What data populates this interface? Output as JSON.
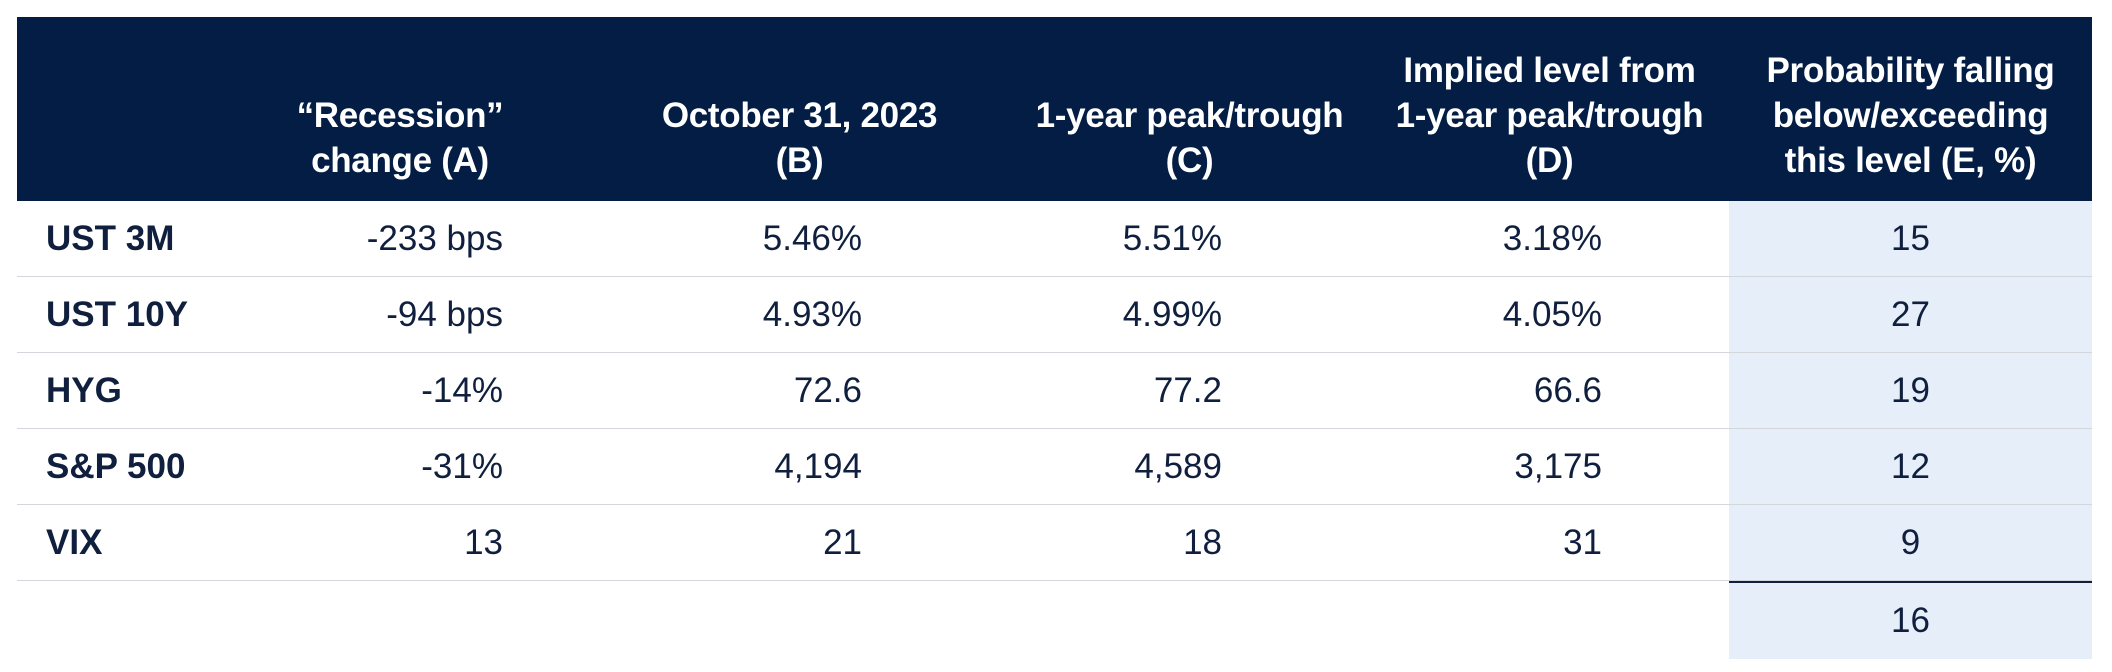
{
  "table": {
    "headers": [
      "",
      "“Recession”\nchange (A)",
      "October 31, 2023\n(B)",
      "1-year peak/trough\n(C)",
      "Implied level from\n1-year peak/trough\n(D)",
      "Probability falling\nbelow/exceeding\nthis level (E, %)"
    ],
    "rows": [
      {
        "label": "UST 3M",
        "a": "-233 bps",
        "b": "5.46%",
        "c": "5.51%",
        "d": "3.18%",
        "e": "15"
      },
      {
        "label": "UST 10Y",
        "a": "-94 bps",
        "b": "4.93%",
        "c": "4.99%",
        "d": "4.05%",
        "e": "27"
      },
      {
        "label": "HYG",
        "a": "-14%",
        "b": "72.6",
        "c": "77.2",
        "d": "66.6",
        "e": "19"
      },
      {
        "label": "S&P 500",
        "a": "-31%",
        "b": "4,194",
        "c": "4,589",
        "d": "3,175",
        "e": "12"
      },
      {
        "label": "VIX",
        "a": "13",
        "b": "21",
        "c": "18",
        "d": "31",
        "e": "9"
      }
    ],
    "average_e": "16"
  },
  "colors": {
    "header_bg": "#031d45",
    "header_text": "#ffffff",
    "highlight_column_bg": "#e6eff9",
    "body_text": "#0f1f3d"
  }
}
